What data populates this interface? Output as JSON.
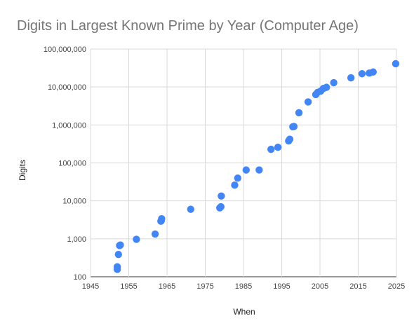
{
  "chart_data": {
    "type": "scatter",
    "title": "Digits in Largest Known Prime by Year (Computer Age)",
    "xlabel": "When",
    "ylabel": "Digits",
    "xlim": [
      1945,
      2025
    ],
    "ylim": [
      100,
      100000000
    ],
    "yscale": "log",
    "grid": true,
    "x_ticks": [
      1945,
      1955,
      1965,
      1975,
      1985,
      1995,
      2005,
      2015,
      2025
    ],
    "x_tick_labels": [
      "1945",
      "1955",
      "1965",
      "1975",
      "1985",
      "1995",
      "2005",
      "2015",
      "2025"
    ],
    "y_ticks": [
      100,
      1000,
      10000,
      100000,
      1000000,
      10000000,
      100000000
    ],
    "y_tick_labels": [
      "100",
      "1,000",
      "10,000",
      "100,000",
      "1,000,000",
      "10,000,000",
      "100,000,000"
    ],
    "point_color": "#4285f4",
    "points": [
      {
        "x": 1952,
        "y": 157
      },
      {
        "x": 1952,
        "y": 183
      },
      {
        "x": 1952.3,
        "y": 386
      },
      {
        "x": 1952.6,
        "y": 664
      },
      {
        "x": 1952.8,
        "y": 687
      },
      {
        "x": 1957,
        "y": 969
      },
      {
        "x": 1961.9,
        "y": 1332
      },
      {
        "x": 1963.4,
        "y": 2917
      },
      {
        "x": 1963.5,
        "y": 2993
      },
      {
        "x": 1963.6,
        "y": 3376
      },
      {
        "x": 1971.2,
        "y": 6002
      },
      {
        "x": 1978.8,
        "y": 6533
      },
      {
        "x": 1979.1,
        "y": 6987
      },
      {
        "x": 1979.2,
        "y": 13395
      },
      {
        "x": 1982.7,
        "y": 25962
      },
      {
        "x": 1983.5,
        "y": 39751
      },
      {
        "x": 1985.7,
        "y": 65050
      },
      {
        "x": 1989.1,
        "y": 65087
      },
      {
        "x": 1992.2,
        "y": 227832
      },
      {
        "x": 1994,
        "y": 258716
      },
      {
        "x": 1996.8,
        "y": 378632
      },
      {
        "x": 1997.1,
        "y": 420921
      },
      {
        "x": 1997.9,
        "y": 895932
      },
      {
        "x": 1998.2,
        "y": 909526
      },
      {
        "x": 1999.5,
        "y": 2098960
      },
      {
        "x": 2001.9,
        "y": 4053946
      },
      {
        "x": 2003.9,
        "y": 6320430
      },
      {
        "x": 2004.4,
        "y": 7235733
      },
      {
        "x": 2005.2,
        "y": 7816230
      },
      {
        "x": 2005.9,
        "y": 9152052
      },
      {
        "x": 2006.7,
        "y": 9808358
      },
      {
        "x": 2008.6,
        "y": 12978189
      },
      {
        "x": 2013.1,
        "y": 17425170
      },
      {
        "x": 2016,
        "y": 22338618
      },
      {
        "x": 2017.9,
        "y": 23249425
      },
      {
        "x": 2018.9,
        "y": 24862048
      },
      {
        "x": 2024.8,
        "y": 41024320
      }
    ]
  }
}
